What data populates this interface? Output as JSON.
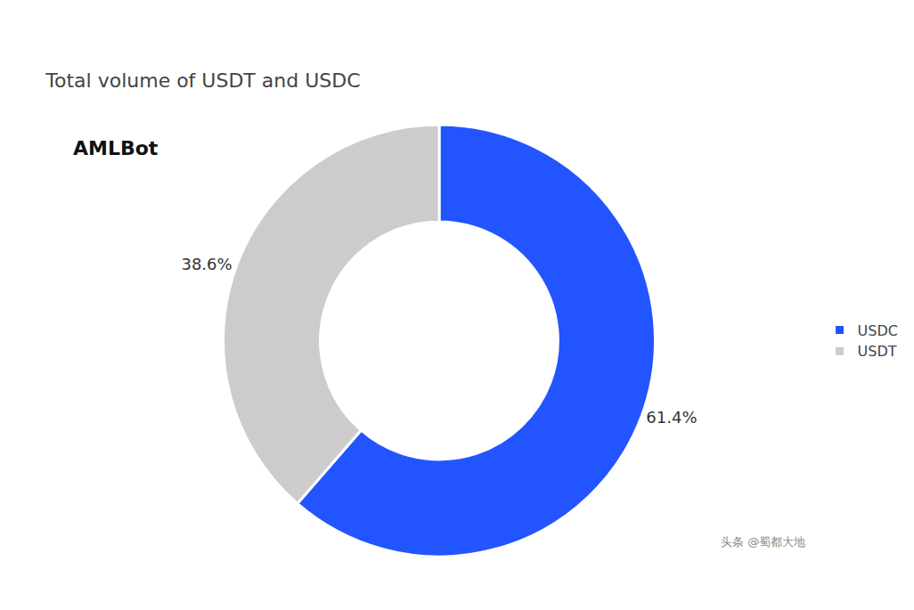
{
  "chart_data": {
    "type": "donut",
    "title": "Total volume of USDT and USDC",
    "categories": [
      "USDC",
      "USDT"
    ],
    "values": [
      61.4,
      38.6
    ],
    "value_labels": [
      "61.4%",
      "38.6%"
    ],
    "data_labels": true,
    "colors": [
      "#2255ff",
      "#cccccc"
    ],
    "legend": "right",
    "annotations": [
      "AMLBot",
      "头条 @蜀都大地"
    ]
  }
}
